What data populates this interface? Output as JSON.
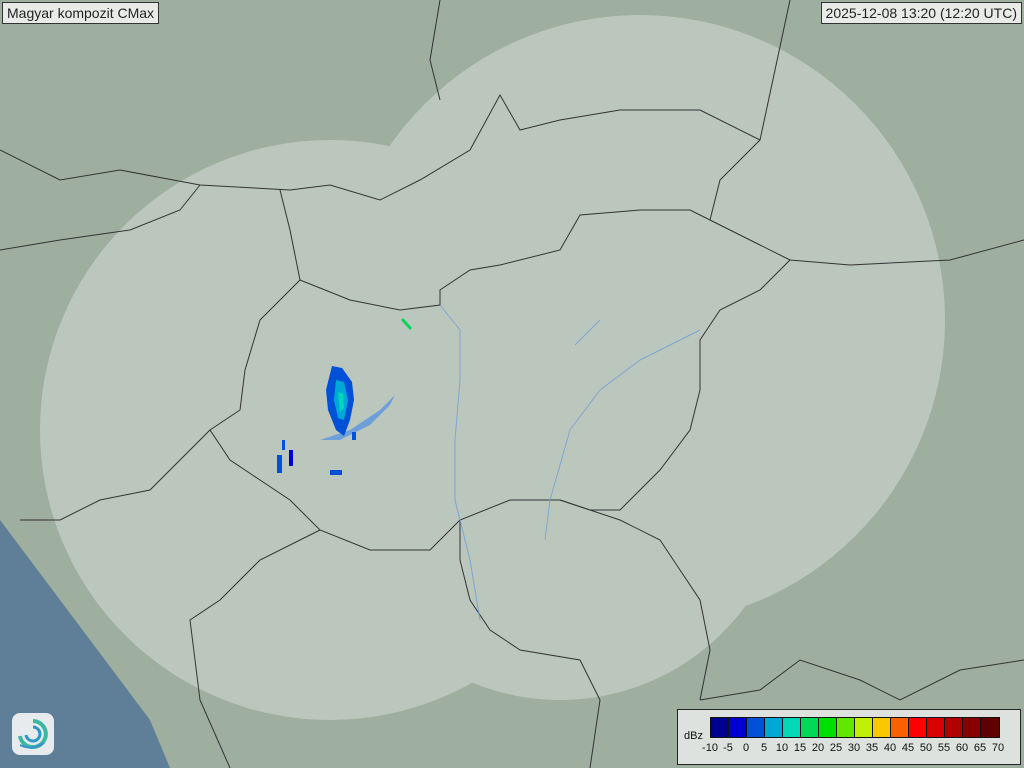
{
  "header": {
    "title": "Magyar kompozit  CMax",
    "timestamp": "2025-12-08 13:20 (12:20 UTC)"
  },
  "legend": {
    "unit": "dBz",
    "colors": [
      "#000090",
      "#0000d0",
      "#0050d8",
      "#00a8d8",
      "#00d8b8",
      "#00d858",
      "#00e000",
      "#60e800",
      "#c0f000",
      "#f8c800",
      "#f86000",
      "#ff0000",
      "#d80000",
      "#b00000",
      "#880000",
      "#600000"
    ],
    "ticks": [
      "-10",
      "-5",
      "0",
      "5",
      "10",
      "15",
      "20",
      "25",
      "30",
      "35",
      "40",
      "45",
      "50",
      "55",
      "60",
      "65",
      "70"
    ]
  },
  "map": {
    "land_color": "#9fb0a4",
    "radar_coverage_color": "#c8d2cc",
    "sea_color": "#5f7f99",
    "border_color": "#333333",
    "river_color": "#6f9fd8"
  },
  "logo": {
    "icon": "swirl-logo-icon"
  }
}
